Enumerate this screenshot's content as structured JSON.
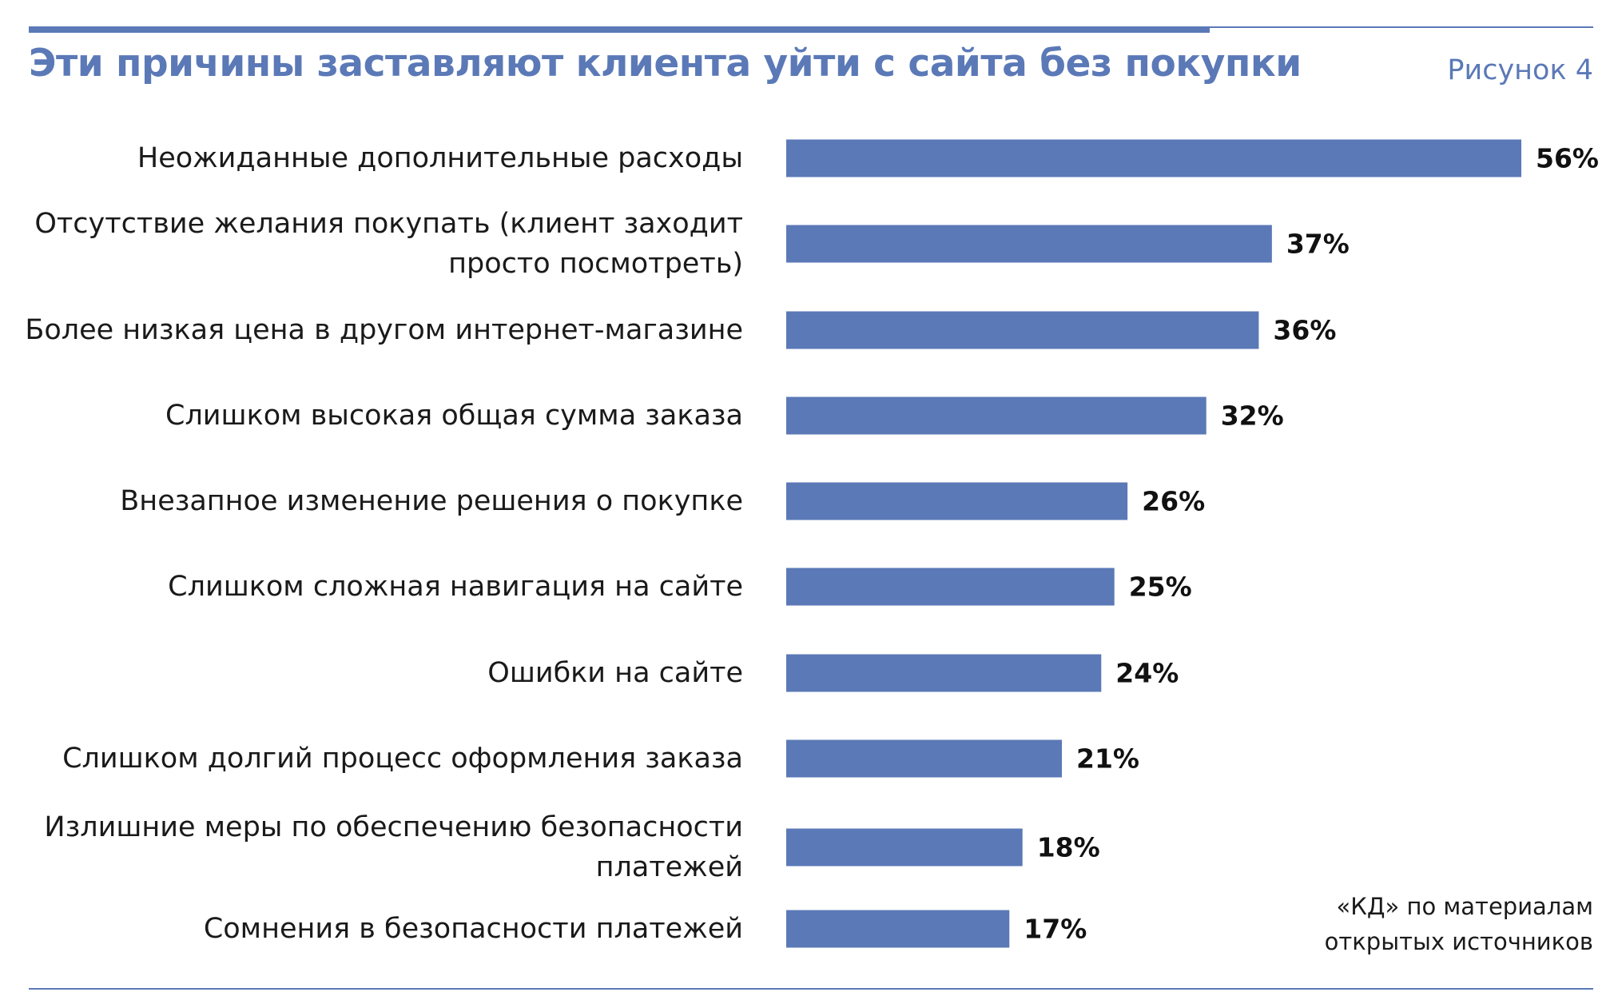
{
  "header": {
    "title": "Эти причины заставляют клиента уйти с сайта без покупки",
    "figure_label": "Рисунок 4"
  },
  "footer": {
    "source_line1": "«КД» по материалам",
    "source_line2": "открытых источников"
  },
  "colors": {
    "accent": "#5b79b7",
    "bar": "#5b79b7",
    "text": "#1a1a1a"
  },
  "chart_data": {
    "type": "bar",
    "orientation": "horizontal",
    "unit": "%",
    "grid": false,
    "categories": [
      [
        "Неожиданные дополнительные расходы"
      ],
      [
        "Отсутствие желания покупать (клиент заходит",
        "просто посмотреть)"
      ],
      [
        "Более низкая цена в другом интернет-магазине"
      ],
      [
        "Слишком высокая общая сумма заказа"
      ],
      [
        "Внезапное изменение решения о покупке"
      ],
      [
        "Слишком сложная навигация на сайте"
      ],
      [
        "Ошибки на сайте"
      ],
      [
        "Слишком долгий процесс оформления заказа"
      ],
      [
        "Излишние меры по обеспечению безопасности",
        "платежей"
      ],
      [
        "Сомнения в безопасности платежей"
      ]
    ],
    "values": [
      56,
      37,
      36,
      32,
      26,
      25,
      24,
      21,
      18,
      17
    ],
    "value_labels": [
      "56%",
      "37%",
      "36%",
      "32%",
      "26%",
      "25%",
      "24%",
      "21%",
      "18%",
      "17%"
    ],
    "xlim": [
      0,
      56
    ]
  }
}
